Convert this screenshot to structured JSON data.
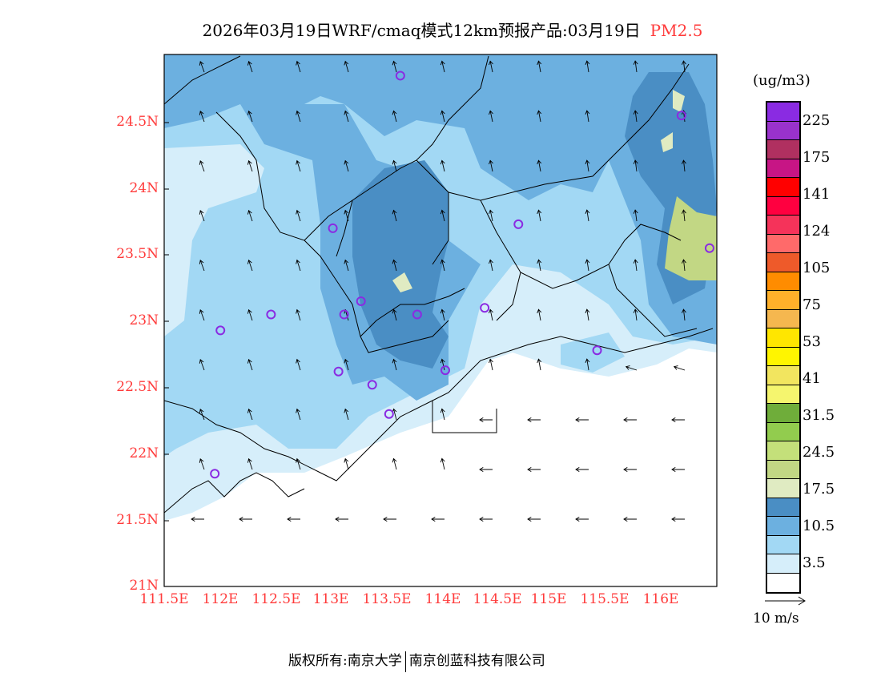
{
  "title": {
    "main": "2026年03月19日WRF/cmaq模式12km预报产品:03月19日",
    "pollutant": "PM2.5"
  },
  "axes": {
    "lat_labels": [
      "24.5N",
      "24N",
      "23.5N",
      "23N",
      "22.5N",
      "22N",
      "21.5N",
      "21N"
    ],
    "lon_labels": [
      "111.5E",
      "112E",
      "112.5E",
      "113E",
      "113.5E",
      "114E",
      "114.5E",
      "115E",
      "115.5E",
      "116E"
    ]
  },
  "legend": {
    "unit": "(ug/m3)",
    "colors": [
      "#8a2be2",
      "#9932cc",
      "#b03060",
      "#c71585",
      "#ff0000",
      "#ff0040",
      "#f5335a",
      "#ff6a6a",
      "#ee5a2a",
      "#ff8c00",
      "#ffb02a",
      "#f5b74f",
      "#ffe600",
      "#fff500",
      "#f2e55f",
      "#f5f56e",
      "#6fad3a",
      "#92cc4e",
      "#c4e07a",
      "#c2d784",
      "#e0ebc2",
      "#4a8ec4",
      "#6cb0e0",
      "#a2d8f4",
      "#d6eefa",
      "#ffffff"
    ],
    "labels": [
      "225",
      "175",
      "141",
      "124",
      "105",
      "75",
      "53",
      "41",
      "31.5",
      "24.5",
      "17.5",
      "10.5",
      "3.5"
    ]
  },
  "vector_legend": "10 m/s",
  "stations": [
    [
      113.6,
      24.85
    ],
    [
      116.1,
      24.55
    ],
    [
      113.0,
      23.7
    ],
    [
      114.65,
      23.73
    ],
    [
      116.35,
      23.55
    ],
    [
      113.25,
      23.15
    ],
    [
      113.1,
      23.05
    ],
    [
      113.75,
      23.05
    ],
    [
      114.35,
      23.1
    ],
    [
      112.45,
      23.05
    ],
    [
      112.0,
      22.93
    ],
    [
      115.35,
      22.78
    ],
    [
      113.05,
      22.62
    ],
    [
      114.0,
      22.63
    ],
    [
      113.35,
      22.52
    ],
    [
      113.5,
      22.3
    ],
    [
      111.95,
      21.85
    ]
  ],
  "footer": {
    "left": "版权所有:南京大学",
    "right": "南京创蓝科技有限公司"
  }
}
